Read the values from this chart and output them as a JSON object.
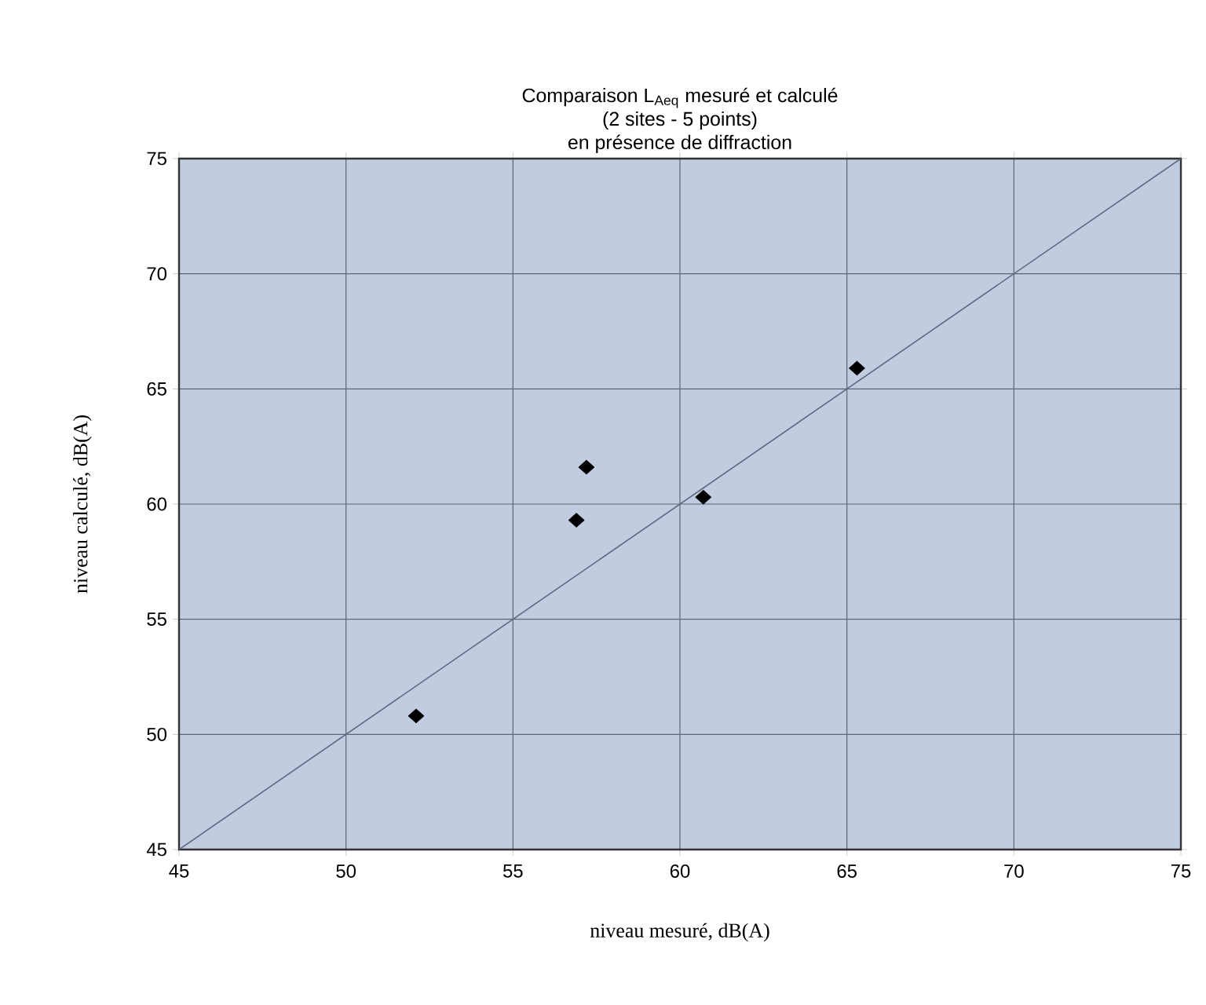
{
  "chart_data": {
    "type": "scatter",
    "title": "Comparaison L$_{Aeq}$ mesuré et calculé",
    "subtitle": "(2 sites - 5 points)",
    "annotations": [
      "en présence de diffraction"
    ],
    "xlabel": "niveau mesuré, dB(A)",
    "ylabel": "niveau calculé, dB(A)",
    "xlim": [
      45,
      75
    ],
    "ylim": [
      45,
      75
    ],
    "xticks": [
      45,
      50,
      55,
      60,
      65,
      70,
      75
    ],
    "yticks": [
      45,
      50,
      55,
      60,
      65,
      70,
      75
    ],
    "grid": true,
    "marker": "diamond",
    "series": [
      {
        "color": "#000000",
        "x": [
          52.1,
          56.9,
          57.2,
          60.7,
          65.3
        ],
        "values": [
          50.8,
          59.3,
          61.6,
          60.3,
          65.9
        ]
      },
      {
        "type": "line",
        "color": "#5a6a80",
        "marker": "none",
        "x": [
          45,
          75
        ],
        "values": [
          45,
          75
        ]
      }
    ]
  }
}
